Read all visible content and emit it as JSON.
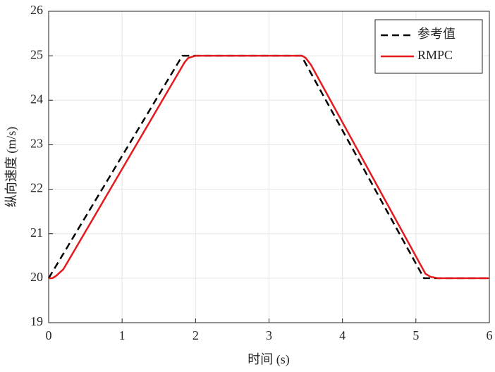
{
  "chart_data": {
    "type": "line",
    "xlabel": "时间 (s)",
    "ylabel": "纵向速度 (m/s)",
    "series": [
      {
        "name": "参考值",
        "color": "#000000",
        "linestyle": "dashed",
        "x": [
          0,
          1.82,
          3.44,
          5.11,
          6
        ],
        "values": [
          20,
          25,
          25,
          20,
          20
        ]
      },
      {
        "name": "RMPC",
        "color": "#e41a1c",
        "linestyle": "solid",
        "x": [
          0,
          0.05,
          0.1,
          0.2,
          1.85,
          1.9,
          2.0,
          3.45,
          3.5,
          3.57,
          5.13,
          5.2,
          5.3,
          6
        ],
        "values": [
          20,
          20,
          20.05,
          20.2,
          24.85,
          24.95,
          25,
          25,
          24.95,
          24.8,
          20.1,
          20.03,
          20,
          20
        ]
      }
    ],
    "xlim": [
      0,
      6
    ],
    "xticks": [
      0,
      1,
      2,
      3,
      4,
      5,
      6
    ],
    "ylim": [
      19,
      26
    ],
    "yticks": [
      19,
      20,
      21,
      22,
      23,
      24,
      25,
      26
    ],
    "grid": true,
    "legend": "northeast"
  }
}
